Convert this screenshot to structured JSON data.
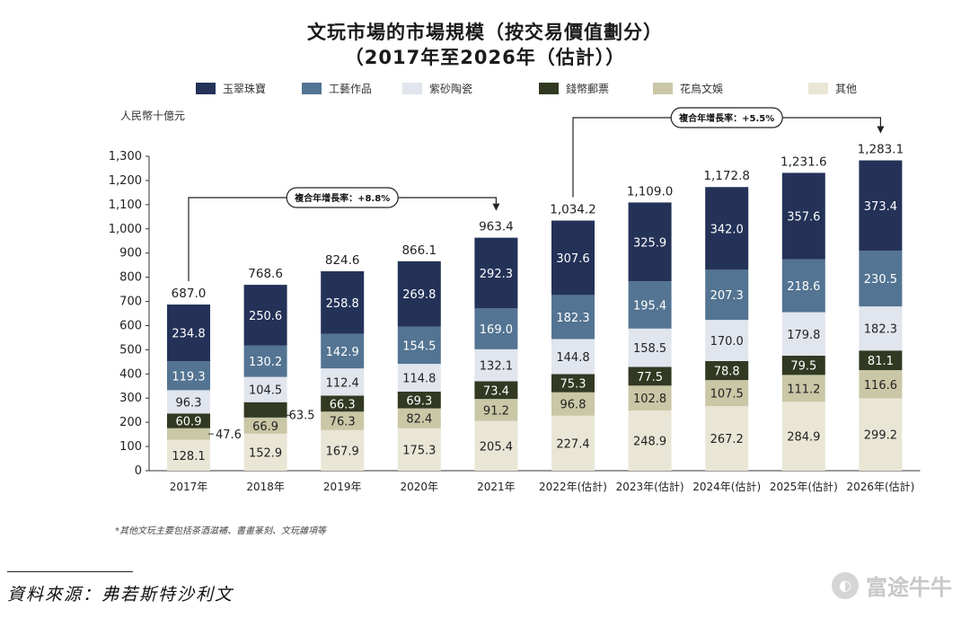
{
  "title_line1": "文玩市場的市場規模（按交易價值劃分）",
  "title_line2": "（2017年至2026年（估計））",
  "unit_label": "人民幣十億元",
  "footnote": "*其他文玩主要包括茶酒滋補、書畫篆刻、文玩雜項等",
  "source": "資料來源：弗若斯特沙利文",
  "watermark": {
    "text": "富途牛牛",
    "icon": "futu-logo-icon"
  },
  "chart_data": {
    "type": "bar",
    "stacked": true,
    "categories": [
      "2017年",
      "2018年",
      "2019年",
      "2020年",
      "2021年",
      "2022年(估計)",
      "2023年(估計)",
      "2024年(估計)",
      "2025年(估計)",
      "2026年(估計)"
    ],
    "series": [
      {
        "name": "其他",
        "color": "#e9e6d6",
        "values": [
          128.1,
          152.9,
          167.9,
          175.3,
          205.4,
          227.4,
          248.9,
          267.2,
          284.9,
          299.2
        ]
      },
      {
        "name": "花鳥文娛",
        "color": "#c9c7a6",
        "values": [
          47.6,
          66.9,
          76.3,
          82.4,
          91.2,
          96.8,
          102.8,
          107.5,
          111.2,
          116.6
        ]
      },
      {
        "name": "錢幣郵票",
        "color": "#323922",
        "values": [
          60.9,
          63.5,
          66.3,
          69.3,
          73.4,
          75.3,
          77.5,
          78.8,
          79.5,
          81.1
        ]
      },
      {
        "name": "紫砂陶瓷",
        "color": "#e1e5ed",
        "values": [
          96.3,
          104.5,
          112.4,
          114.8,
          132.1,
          144.8,
          158.5,
          170.0,
          179.8,
          182.3
        ]
      },
      {
        "name": "工藝作品",
        "color": "#537492",
        "values": [
          119.3,
          130.2,
          142.9,
          154.5,
          169.0,
          182.3,
          195.4,
          207.3,
          218.6,
          230.5
        ]
      },
      {
        "name": "玉翠珠寶",
        "color": "#243258",
        "values": [
          234.8,
          250.6,
          258.8,
          269.8,
          292.3,
          307.6,
          325.9,
          342.0,
          357.6,
          373.4
        ]
      }
    ],
    "value_labels": [
      [
        "128.1",
        "152.9",
        "167.9",
        "175.3",
        "205.4",
        "227.4",
        "248.9",
        "267.2",
        "284.9",
        "299.2"
      ],
      [
        "47.6",
        "66.9",
        "76.3",
        "82.4",
        "91.2",
        "96.8",
        "102.8",
        "107.5",
        "111.2",
        "116.6"
      ],
      [
        "60.9",
        "63.5",
        "66.3",
        "69.3",
        "73.4",
        "75.3",
        "77.5",
        "78.8",
        "79.5",
        "81.1"
      ],
      [
        "96.3",
        "104.5",
        "112.4",
        "114.8",
        "132.1",
        "144.8",
        "158.5",
        "170.0",
        "179.8",
        "182.3"
      ],
      [
        "119.3",
        "130.2",
        "142.9",
        "154.5",
        "169.0",
        "182.3",
        "195.4",
        "207.3",
        "218.6",
        "230.5"
      ],
      [
        "234.8",
        "250.6",
        "258.8",
        "269.8",
        "292.3",
        "307.6",
        "325.9",
        "342.0",
        "357.6",
        "373.4"
      ]
    ],
    "totals": [
      687.0,
      768.6,
      824.6,
      866.1,
      963.4,
      1034.2,
      1109.0,
      1172.8,
      1231.6,
      1283.1
    ],
    "total_labels": [
      "687.0",
      "768.6",
      "824.6",
      "866.1",
      "963.4",
      "1,034.2",
      "1,109.0",
      "1,172.8",
      "1,231.6",
      "1,283.1"
    ],
    "ylim": [
      0,
      1300
    ],
    "yticks": [
      0,
      100,
      200,
      300,
      400,
      500,
      600,
      700,
      800,
      900,
      1000,
      1100,
      1200,
      1300
    ],
    "ytick_labels": [
      "0",
      "100",
      "200",
      "300",
      "400",
      "500",
      "600",
      "700",
      "800",
      "900",
      "1,000",
      "1,100",
      "1,200",
      "1,300"
    ],
    "legend_order": [
      "玉翠珠寶",
      "工藝作品",
      "紫砂陶瓷",
      "錢幣郵票",
      "花鳥文娛",
      "其他"
    ],
    "annotations": [
      {
        "text": "複合年增長率：+8.8%",
        "from_index": 0,
        "to_index": 4
      },
      {
        "text": "複合年增長率：+5.5%",
        "from_index": 5,
        "to_index": 9
      }
    ]
  }
}
